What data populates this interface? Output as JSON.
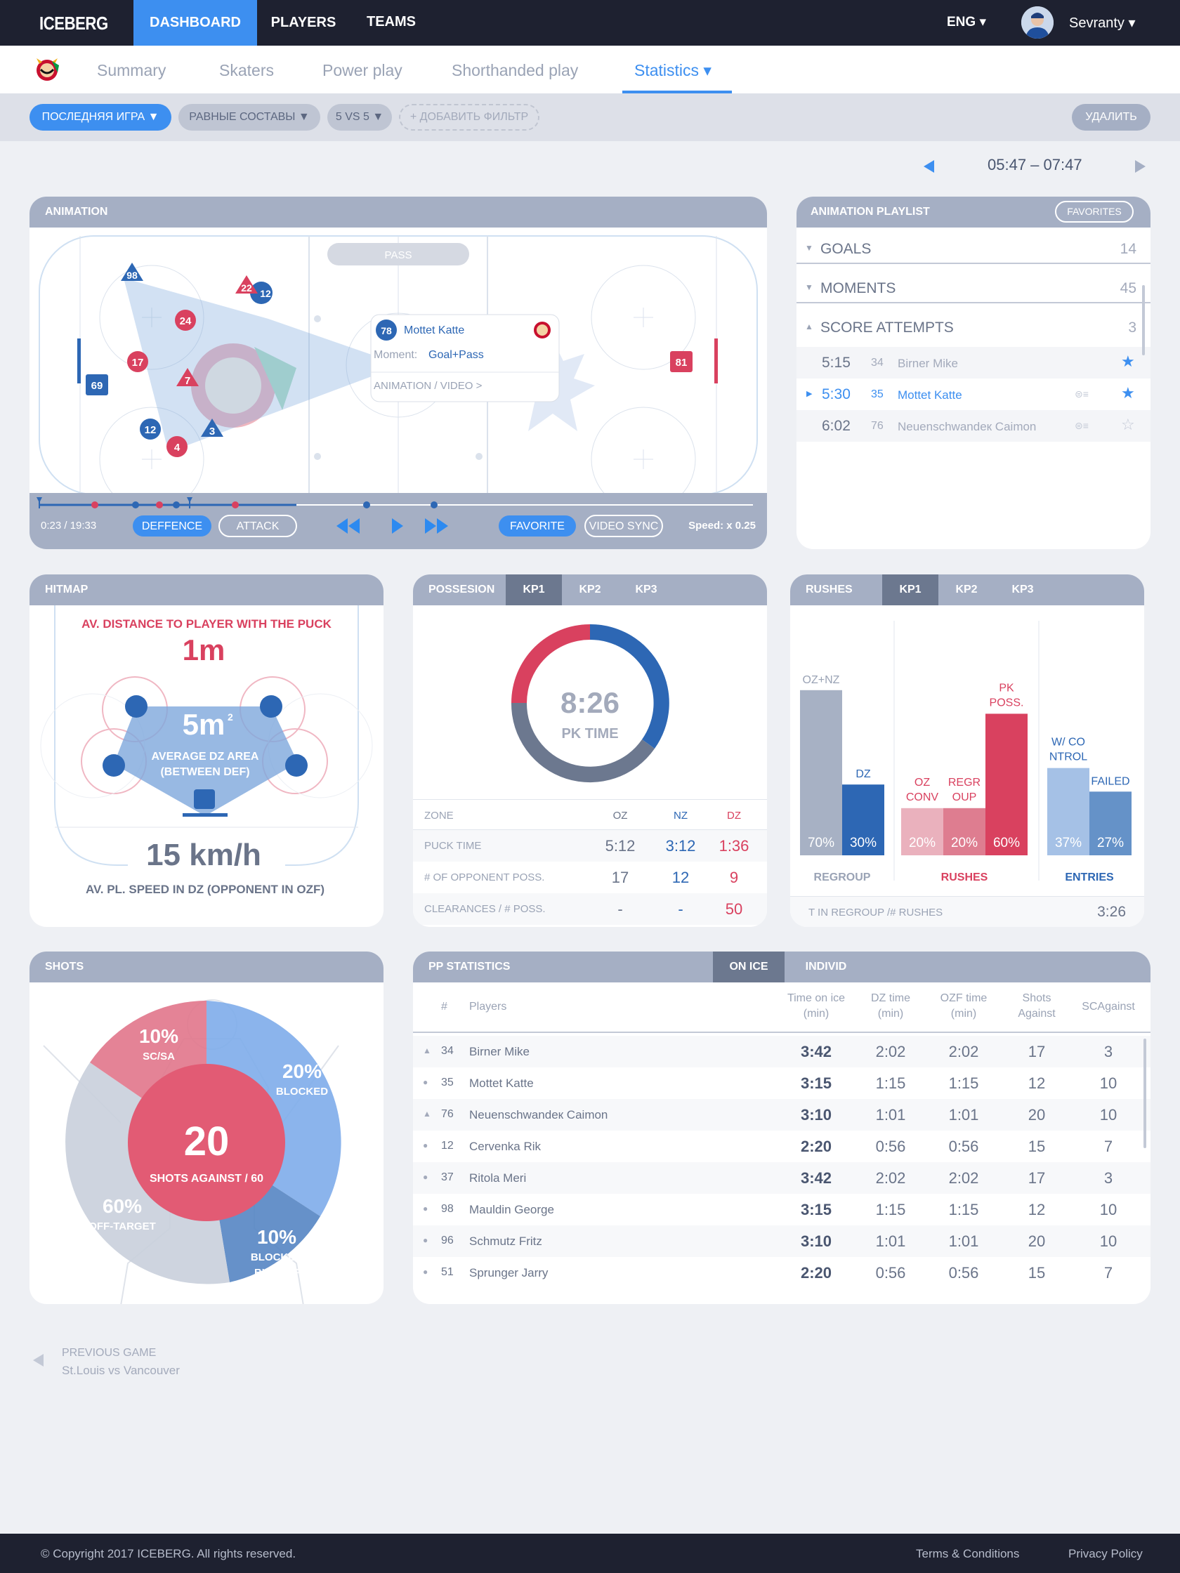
{
  "app": {
    "logo": "ICEBERG",
    "lang": "ENG ▾",
    "user": "Sevranty ▾"
  },
  "nav": [
    {
      "label": "DASHBOARD"
    },
    {
      "label": "PLAYERS"
    },
    {
      "label": "TEAMS"
    }
  ],
  "subnav": [
    {
      "label": "Summary"
    },
    {
      "label": "Skaters"
    },
    {
      "label": "Power play"
    },
    {
      "label": "Shorthanded play"
    },
    {
      "label": "Statistics ▾"
    }
  ],
  "filters": {
    "f1": "ПОСЛЕДНЯЯ ИГРА ▼",
    "f2": "РАВНЫЕ СОСТАВЫ ▼",
    "f3": "5 VS 5 ▼",
    "add": "+ ДОБАВИТЬ ФИЛЬТР",
    "delete": "УДАЛИТЬ"
  },
  "time_range": "05:47 – 07:47",
  "animation": {
    "title": "ANIMATION",
    "pass_label": "PASS",
    "players": {
      "p98": "98",
      "p22": "22",
      "p12a": "12",
      "p24": "24",
      "p17": "17",
      "p7": "7",
      "p69": "69",
      "p12b": "12",
      "p4": "4",
      "p3": "3",
      "p81": "81"
    },
    "tooltip": {
      "number": "78",
      "name": "Mottet Katte",
      "moment_label": "Moment:",
      "moment_value": "Goal+Pass",
      "link": "ANIMATION / VIDEO >"
    },
    "controls": {
      "time": "0:23 / 19:33",
      "defence": "DEFFENCE",
      "attack": "ATTACK",
      "favorite": "FAVORITE",
      "video_sync": "VIDEO SYNC",
      "speed": "Speed: x 0.25"
    }
  },
  "playlist": {
    "title": "ANIMATION PLAYLIST",
    "favorites": "FAVORITES",
    "sections": [
      {
        "label": "GOALS",
        "count": "14"
      },
      {
        "label": "MOMENTS",
        "count": "45"
      },
      {
        "label": "SCORE ATTEMPTS",
        "count": "3"
      }
    ],
    "items": [
      {
        "time": "5:15",
        "num": "34",
        "name": "Birner Mike"
      },
      {
        "time": "5:30",
        "num": "35",
        "name": "Mottet Katte"
      },
      {
        "time": "6:02",
        "num": "76",
        "name": "Neuenschwandeк Caimon"
      }
    ]
  },
  "hitmap": {
    "title": "HITMAP",
    "dist_label": "AV. DISTANCE TO PLAYER WITH THE PUCK",
    "dist_value": "1m",
    "area_value": "5m",
    "area_sup": "2",
    "area_label1": "AVERAGE DZ AREA",
    "area_label2": "(BETWEEN DEF)",
    "speed_value": "15 km/h",
    "speed_label": "AV. PL. SPEED IN DZ (OPPONENT IN OZF)"
  },
  "possession": {
    "title": "POSSESION",
    "tabs": [
      "KP1",
      "KP2",
      "KP3"
    ],
    "center_value": "8:26",
    "center_label": "PK TIME",
    "cols": [
      "ZONE",
      "OZ",
      "NZ",
      "DZ"
    ],
    "rows": [
      {
        "label": "PUCK TIME",
        "oz": "5:12",
        "nz": "3:12",
        "dz": "1:36"
      },
      {
        "label": "# OF OPPONENT POSS.",
        "oz": "17",
        "nz": "12",
        "dz": "9"
      },
      {
        "label": "CLEARANCES / # POSS.",
        "oz": "-",
        "nz": "-",
        "dz": "50"
      }
    ]
  },
  "rushes": {
    "title": "RUSHES",
    "tabs": [
      "KP1",
      "KP2",
      "KP3"
    ],
    "groups": [
      {
        "label": "REGROUP",
        "bars": [
          {
            "label1": "OZ+NZ",
            "label2": "",
            "value": 70,
            "text": "70%",
            "color": "#a7b1c4"
          },
          {
            "label1": "DZ",
            "label2": "",
            "value": 30,
            "text": "30%",
            "color": "#2d67b4"
          }
        ]
      },
      {
        "label": "RUSHES",
        "bars": [
          {
            "label1": "OZ",
            "label2": "CONV",
            "value": 20,
            "text": "20%",
            "color": "#eab1bd"
          },
          {
            "label1": "REGR",
            "label2": "OUP",
            "value": 20,
            "text": "20%",
            "color": "#de7d90"
          },
          {
            "label1": "PK",
            "label2": "POSS.",
            "value": 60,
            "text": "60%",
            "color": "#d9415f"
          }
        ]
      },
      {
        "label": "ENTRIES",
        "bars": [
          {
            "label1": "W/ CO",
            "label2": "NTROL",
            "value": 37,
            "text": "37%",
            "color": "#a5c1e6"
          },
          {
            "label1": "FAILED",
            "label2": "",
            "value": 27,
            "text": "27%",
            "color": "#6592c8"
          }
        ]
      }
    ],
    "footer_label": "T IN REGROUP /# RUSHES",
    "footer_value": "3:26"
  },
  "shots": {
    "title": "SHOTS",
    "center_value": "20",
    "center_label": "SHOTS AGAINST / 60",
    "segments": [
      {
        "pct": "10%",
        "label": "SC/SA",
        "value": 10
      },
      {
        "pct": "20%",
        "label": "BLOCKED",
        "value": 20
      },
      {
        "pct": "10%",
        "label": "BLOCKED",
        "label2": "BY DEFF",
        "value": 10
      },
      {
        "pct": "60%",
        "label": "OFF-TARGET",
        "value": 60
      }
    ]
  },
  "pp": {
    "title": "PP STATISTICS",
    "tabs": [
      "ON ICE",
      "INDIVID"
    ],
    "headers": {
      "num": "#",
      "players": "Players",
      "toi1": "Time on ice",
      "toi2": "(min)",
      "dz1": "DZ time",
      "dz2": "(min)",
      "ozf1": "OZF time",
      "ozf2": "(min)",
      "sa1": "Shots",
      "sa2": "Against",
      "sc": "SCAgainst"
    },
    "rows": [
      {
        "num": "34",
        "name": "Birner Mike",
        "toi": "3:42",
        "dz": "2:02",
        "ozf": "2:02",
        "sa": "17",
        "sc": "3"
      },
      {
        "num": "35",
        "name": "Mottet Katte",
        "toi": "3:15",
        "dz": "1:15",
        "ozf": "1:15",
        "sa": "12",
        "sc": "10"
      },
      {
        "num": "76",
        "name": "Neuenschwandeк Caimon",
        "toi": "3:10",
        "dz": "1:01",
        "ozf": "1:01",
        "sa": "20",
        "sc": "10"
      },
      {
        "num": "12",
        "name": "Cervenka Rik",
        "toi": "2:20",
        "dz": "0:56",
        "ozf": "0:56",
        "sa": "15",
        "sc": "7"
      },
      {
        "num": "37",
        "name": "Ritola Meri",
        "toi": "3:42",
        "dz": "2:02",
        "ozf": "2:02",
        "sa": "17",
        "sc": "3"
      },
      {
        "num": "98",
        "name": "Mauldin George",
        "toi": "3:15",
        "dz": "1:15",
        "ozf": "1:15",
        "sa": "12",
        "sc": "10"
      },
      {
        "num": "96",
        "name": "Schmutz Fritz",
        "toi": "3:10",
        "dz": "1:01",
        "ozf": "1:01",
        "sa": "20",
        "sc": "10"
      },
      {
        "num": "51",
        "name": "Sprunger Jarry",
        "toi": "2:20",
        "dz": "0:56",
        "ozf": "0:56",
        "sa": "15",
        "sc": "7"
      }
    ]
  },
  "prev_game": {
    "label": "PREVIOUS GAME",
    "teams": "St.Louis vs Vancouver"
  },
  "footer": {
    "copyright": "© Copyright 2017 ICEBERG. All rights reserved.",
    "terms": "Terms & Conditions",
    "privacy": "Privacy Policy"
  }
}
